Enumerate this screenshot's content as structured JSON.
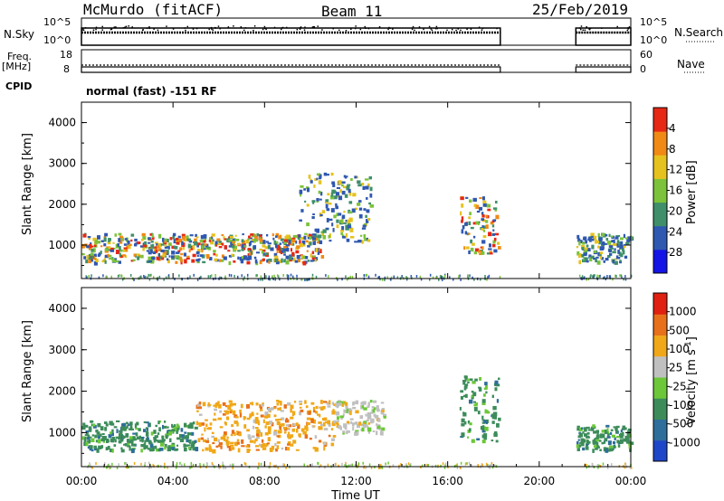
{
  "header": {
    "station": "McMurdo (fitACF)",
    "beam": "Beam 11",
    "date": "25/Feb/2019"
  },
  "status": {
    "nsky_label": "N.Sky",
    "nsky_ticks": [
      "10^5",
      "10^0"
    ],
    "nsearch_label": "N.Search",
    "nsearch_ticks": [
      "10^5",
      "10^0"
    ],
    "freq_label": "Freq.",
    "freq_unit": "[MHz]",
    "freq_ticks": [
      "18",
      "8"
    ],
    "nave_label": "Nave",
    "nave_ticks": [
      "60",
      "0"
    ],
    "cpid_label": "CPID",
    "cpid_text": "normal (fast) -151 RF",
    "data_gap": {
      "start_hour": 18.3,
      "end_hour": 21.6
    }
  },
  "chart_data": [
    {
      "type": "heatmap",
      "parameter": "Power",
      "ylabel": "Slant Range [km]",
      "ylim": [
        180,
        4500
      ],
      "yticks": [
        "1000",
        "2000",
        "3000",
        "4000"
      ],
      "colorbar_label": "Power [dB]",
      "colorbar_ticks": [
        "4",
        "8",
        "12",
        "16",
        "20",
        "24",
        "28"
      ],
      "colorbar_colors": [
        "#1414e6",
        "#2f58b0",
        "#3f8f6a",
        "#7cc23a",
        "#e6c21e",
        "#f08a14",
        "#e62814"
      ],
      "echo_regions": [
        {
          "hours": [
            0,
            10.5
          ],
          "range_km": [
            600,
            1300
          ],
          "max_dB": 30
        },
        {
          "hours": [
            9.5,
            12.6
          ],
          "range_km": [
            1100,
            2800
          ],
          "max_dB": 20
        },
        {
          "hours": [
            16.5,
            18.2
          ],
          "range_km": [
            800,
            2200
          ],
          "max_dB": 28
        },
        {
          "hours": [
            21.6,
            24
          ],
          "range_km": [
            600,
            1300
          ],
          "max_dB": 20
        }
      ]
    },
    {
      "type": "heatmap",
      "parameter": "Velocity",
      "xlabel": "Time UT",
      "ylabel": "Slant Range [km]",
      "xlim": [
        0,
        24
      ],
      "xticks": [
        "00:00",
        "04:00",
        "08:00",
        "12:00",
        "16:00",
        "20:00",
        "00:00"
      ],
      "ylim": [
        180,
        4500
      ],
      "yticks": [
        "1000",
        "2000",
        "3000",
        "4000"
      ],
      "colorbar_label": "Velocity [m s",
      "colorbar_unit_exp": "-1",
      "colorbar_ticks": [
        "1000",
        "500",
        "100",
        "25",
        "-25",
        "-100",
        "-500",
        "-1000"
      ],
      "colorbar_colors": [
        "#1e46c8",
        "#2e6e9a",
        "#3c8c5a",
        "#6cc838",
        "#c0c0c0",
        "#f0a818",
        "#e8701a",
        "#e02010"
      ],
      "echo_regions": [
        {
          "hours": [
            0,
            5
          ],
          "range_km": [
            600,
            1300
          ],
          "velocity": -100
        },
        {
          "hours": [
            5,
            11
          ],
          "range_km": [
            600,
            1800
          ],
          "velocity": 100
        },
        {
          "hours": [
            11,
            13.2
          ],
          "range_km": [
            1000,
            1800
          ],
          "velocity": 25
        },
        {
          "hours": [
            16.5,
            18.2
          ],
          "range_km": [
            800,
            2400
          ],
          "velocity": -100
        },
        {
          "hours": [
            21.6,
            24
          ],
          "range_km": [
            600,
            1200
          ],
          "velocity": -100
        }
      ]
    }
  ]
}
